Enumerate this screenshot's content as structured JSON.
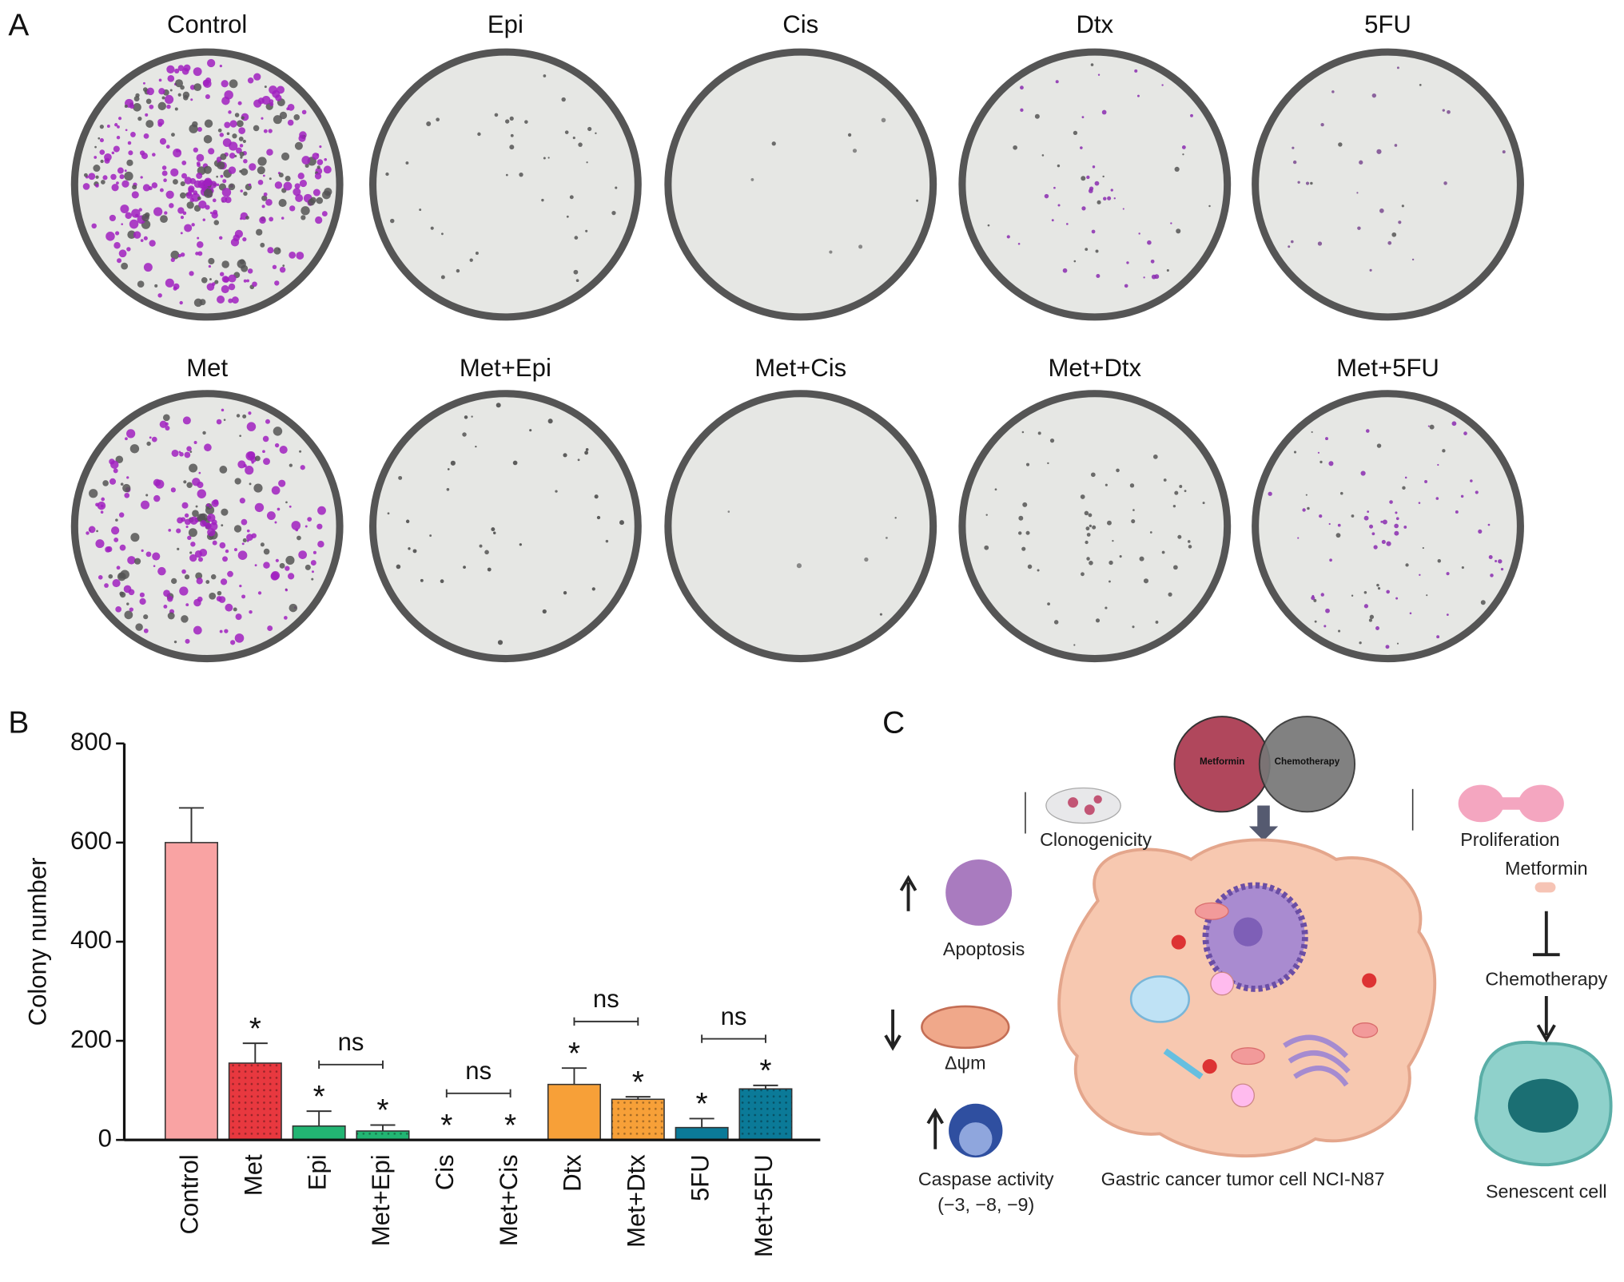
{
  "panel_letters": [
    "A",
    "B",
    "C"
  ],
  "panel_a": {
    "row1": [
      "Control",
      "Epi",
      "Cis",
      "Dtx",
      "5FU"
    ],
    "row2": [
      "Met",
      "Met+Epi",
      "Met+Cis",
      "Met+Dtx",
      "Met+5FU"
    ]
  },
  "chart_data": {
    "type": "bar",
    "ylabel": "Colony number",
    "categories": [
      "Control",
      "Met",
      "Epi",
      "Met+Epi",
      "Cis",
      "Met+Cis",
      "Dtx",
      "Met+Dtx",
      "5FU",
      "Met+5FU"
    ],
    "values": [
      600,
      155,
      28,
      18,
      0,
      0,
      112,
      82,
      25,
      103
    ],
    "errors": [
      70,
      40,
      30,
      12,
      0,
      0,
      33,
      5,
      18,
      7
    ],
    "colors": [
      "#f9a3a3",
      "#e8383f",
      "#22b573",
      "#22b573",
      "#22b573",
      "#22b573",
      "#f7a038",
      "#f7a038",
      "#0b7a98",
      "#0b7a98"
    ],
    "patterned": [
      false,
      true,
      false,
      true,
      false,
      true,
      false,
      true,
      false,
      true
    ],
    "ylim": [
      0,
      800
    ],
    "yticks": [
      0,
      200,
      400,
      600,
      800
    ],
    "star": "*",
    "starred": [
      "Met",
      "Epi",
      "Met+Epi",
      "Cis",
      "Met+Cis",
      "Dtx",
      "Met+Dtx",
      "5FU",
      "Met+5FU"
    ],
    "ns_label": "ns",
    "ns_pairs": [
      [
        "Epi",
        "Met+Epi"
      ],
      [
        "Cis",
        "Met+Cis"
      ],
      [
        "Dtx",
        "Met+Dtx"
      ],
      [
        "5FU",
        "Met+5FU"
      ]
    ]
  },
  "panel_c": {
    "metformin": "Metformin",
    "chemotherapy": "Chemotherapy",
    "clonogenicity": "Clonogenicity",
    "apoptosis": "Apoptosis",
    "membrane_potential": "Δψm",
    "caspase": "Caspase activity",
    "caspase_types": "(−3, −8, −9)",
    "cell": "Gastric cancer tumor cell NCI-N87",
    "proliferation": "Proliferation",
    "pathway_metformin": "Metformin",
    "pathway_chemotherapy": "Chemotherapy",
    "senescent": "Senescent cell"
  }
}
